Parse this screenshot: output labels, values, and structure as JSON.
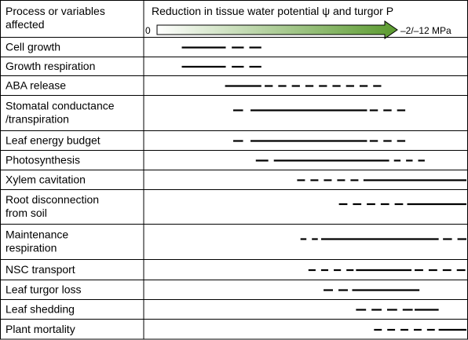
{
  "header": {
    "left_title_line1": "Process or variables",
    "left_title_line2": "affected",
    "right_title": "Reduction in tissue water potential ψ and turgor P",
    "arrow_start_label": "0",
    "arrow_end_label": "–2/–12 MPa"
  },
  "colors": {
    "grid": "#000000",
    "gradient_start": "#ffffff",
    "gradient_end": "#5a9a2e"
  },
  "rows": [
    {
      "id": "cell-growth",
      "lines": [
        "Cell growth"
      ],
      "segments": [
        {
          "s": 0.103,
          "e": 0.286,
          "t": "solid"
        },
        {
          "s": 0.311,
          "e": 0.434,
          "t": "dashed"
        }
      ]
    },
    {
      "id": "growth-respiration",
      "lines": [
        "Growth respiration"
      ],
      "segments": [
        {
          "s": 0.103,
          "e": 0.286,
          "t": "solid"
        },
        {
          "s": 0.311,
          "e": 0.434,
          "t": "dashed"
        }
      ]
    },
    {
      "id": "aba-release",
      "lines": [
        "ABA release"
      ],
      "segments": [
        {
          "s": 0.283,
          "e": 0.434,
          "t": "solid"
        },
        {
          "s": 0.448,
          "e": 0.933,
          "t": "dashed"
        }
      ]
    },
    {
      "id": "stomatal-conductance",
      "lines": [
        "Stomatal conductance",
        "/transpiration"
      ],
      "segments": [
        {
          "s": 0.317,
          "e": 0.358,
          "t": "dashed"
        },
        {
          "s": 0.389,
          "e": 0.874,
          "t": "solid"
        },
        {
          "s": 0.885,
          "e": 1.033,
          "t": "dashed"
        }
      ]
    },
    {
      "id": "leaf-energy-budget",
      "lines": [
        "Leaf energy budget"
      ],
      "segments": [
        {
          "s": 0.317,
          "e": 0.358,
          "t": "dashed"
        },
        {
          "s": 0.389,
          "e": 0.874,
          "t": "solid"
        },
        {
          "s": 0.885,
          "e": 1.033,
          "t": "dashed"
        }
      ]
    },
    {
      "id": "photosynthesis",
      "lines": [
        "Photosynthesis"
      ],
      "segments": [
        {
          "s": 0.411,
          "e": 0.463,
          "t": "dashed"
        },
        {
          "s": 0.486,
          "e": 0.966,
          "t": "solid"
        },
        {
          "s": 0.986,
          "e": 1.114,
          "t": "dashed"
        }
      ]
    },
    {
      "id": "xylem-cavitation",
      "lines": [
        "Xylem cavitation"
      ],
      "segments": [
        {
          "s": 0.583,
          "e": 0.838,
          "t": "dashed"
        },
        {
          "s": 0.859,
          "e": 1.345,
          "t": "solid"
        }
      ]
    },
    {
      "id": "root-disconnection",
      "lines": [
        "Root disconnection",
        "from soil"
      ],
      "segments": [
        {
          "s": 0.757,
          "e": 1.024,
          "t": "dashed"
        },
        {
          "s": 1.041,
          "e": 1.345,
          "t": "solid"
        }
      ]
    },
    {
      "id": "maintenance-respiration",
      "lines": [
        "Maintenance",
        "respiration"
      ],
      "segments": [
        {
          "s": 0.597,
          "e": 0.669,
          "t": "dashed"
        },
        {
          "s": 0.683,
          "e": 1.172,
          "t": "solid"
        },
        {
          "s": 1.19,
          "e": 1.309,
          "t": "dashed"
        }
      ]
    },
    {
      "id": "nsc-transport",
      "lines": [
        "NSC transport"
      ],
      "segments": [
        {
          "s": 0.63,
          "e": 0.818,
          "t": "dashed"
        },
        {
          "s": 0.828,
          "e": 1.059,
          "t": "solid"
        },
        {
          "s": 1.072,
          "e": 1.283,
          "t": "dashed"
        }
      ]
    },
    {
      "id": "leaf-turgor-loss",
      "lines": [
        "Leaf turgor loss"
      ],
      "segments": [
        {
          "s": 0.693,
          "e": 0.794,
          "t": "dashed"
        },
        {
          "s": 0.812,
          "e": 1.092,
          "t": "solid"
        }
      ]
    },
    {
      "id": "leaf-shedding",
      "lines": [
        "Leaf shedding"
      ],
      "segments": [
        {
          "s": 0.828,
          "e": 1.064,
          "t": "dashed"
        },
        {
          "s": 1.072,
          "e": 1.172,
          "t": "solid"
        }
      ]
    },
    {
      "id": "plant-mortality",
      "lines": [
        "Plant mortality"
      ],
      "segments": [
        {
          "s": 0.903,
          "e": 1.156,
          "t": "dashed"
        },
        {
          "s": 1.172,
          "e": 1.345,
          "t": "solid"
        }
      ]
    }
  ]
}
